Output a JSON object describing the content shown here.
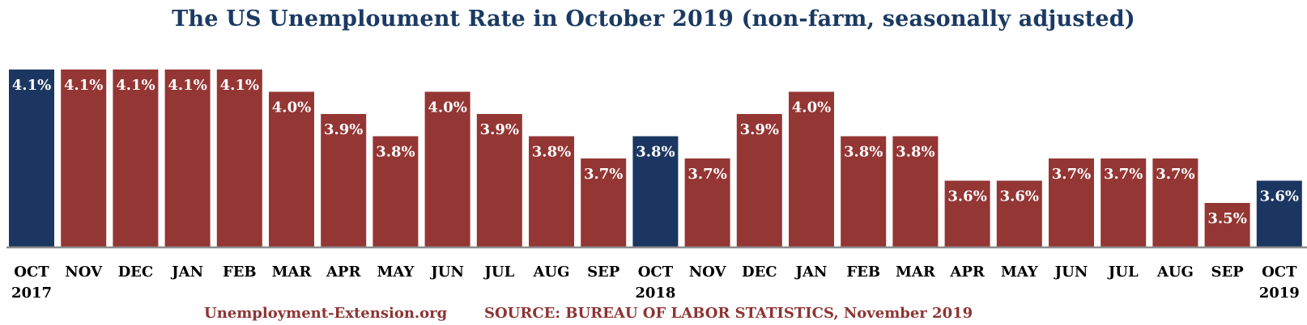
{
  "title": "The US Unemploument Rate in October 2019 (non-farm, seasonally adjusted)",
  "footer": {
    "site": "Unemployment-Extension.org",
    "source": "SOURCE: BUREAU OF LABOR STATISTICS, November 2019"
  },
  "colors": {
    "highlight": "#1b3660",
    "regular": "#943634",
    "title": "#1b3a63",
    "footer": "#8e3434"
  },
  "chart_data": {
    "type": "bar",
    "title": "The US Unemploument Rate in October 2019 (non-farm, seasonally adjusted)",
    "categories": [
      "OCT",
      "NOV",
      "DEC",
      "JAN",
      "FEB",
      "MAR",
      "APR",
      "MAY",
      "JUN",
      "JUL",
      "AUG",
      "SEP",
      "OCT",
      "NOV",
      "DEC",
      "JAN",
      "FEB",
      "MAR",
      "APR",
      "MAY",
      "JUN",
      "JUL",
      "AUG",
      "SEP",
      "OCT"
    ],
    "year_labels": [
      "2017",
      "",
      "",
      "",
      "",
      "",
      "",
      "",
      "",
      "",
      "",
      "",
      "2018",
      "",
      "",
      "",
      "",
      "",
      "",
      "",
      "",
      "",
      "",
      "",
      "2019"
    ],
    "values": [
      4.1,
      4.1,
      4.1,
      4.1,
      4.1,
      4.0,
      3.9,
      3.8,
      4.0,
      3.9,
      3.8,
      3.7,
      3.8,
      3.7,
      3.9,
      4.0,
      3.8,
      3.8,
      3.6,
      3.6,
      3.7,
      3.7,
      3.7,
      3.5,
      3.6
    ],
    "labels": [
      "4.1%",
      "4.1%",
      "4.1%",
      "4.1%",
      "4.1%",
      "4.0%",
      "3.9%",
      "3.8%",
      "4.0%",
      "3.9%",
      "3.8%",
      "3.7%",
      "3.8%",
      "3.7%",
      "3.9%",
      "4.0%",
      "3.8%",
      "3.8%",
      "3.6%",
      "3.6%",
      "3.7%",
      "3.7%",
      "3.7%",
      "3.5%",
      "3.6%"
    ],
    "highlighted": [
      0,
      12,
      24
    ],
    "ylim": [
      3.3,
      4.1
    ],
    "grid": false,
    "xlabel": "",
    "ylabel": ""
  }
}
